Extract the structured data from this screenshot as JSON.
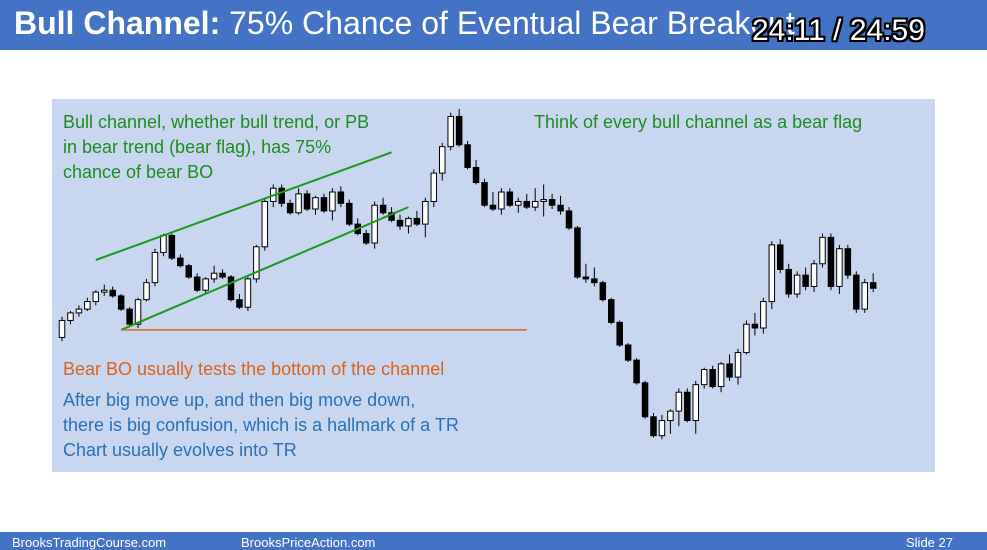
{
  "slide": {
    "title_bold": "Bull Channel:",
    "title_rest": " 75% Chance of Eventual Bear Breakout",
    "timer": "24:11 / 24:59"
  },
  "notes": {
    "bull_channel": [
      "Bull channel, whether bull trend, or PB",
      "in bear trend (bear flag), has 75%",
      "chance of bear BO"
    ],
    "bear_flag": "Think of every bull channel as a bear flag",
    "bear_bo": "Bear BO usually tests the bottom of the channel",
    "confusion": [
      "After big move up, and then big move down,",
      "there is big confusion, which is a hallmark of a TR",
      "Chart usually evolves into TR"
    ]
  },
  "footer": {
    "site1": "BrooksTradingCourse.com",
    "site2": "BrooksPriceAction.com",
    "slide_label": "Slide  27"
  },
  "colors": {
    "title_bar": "#4472c4",
    "chart_bg": "#c9d6f0",
    "bull_candle": "#ffffff",
    "bear_candle": "#000000",
    "channel_line": "#1a9a1a",
    "test_line": "#d9631e"
  },
  "chart_data": {
    "type": "candlestick",
    "ohlc": [
      [
        31,
        29,
        42,
        40
      ],
      [
        40,
        38,
        45,
        44
      ],
      [
        44,
        42,
        48,
        46
      ],
      [
        46,
        45,
        52,
        50
      ],
      [
        50,
        48,
        56,
        55
      ],
      [
        55,
        53,
        59,
        56
      ],
      [
        56,
        52,
        58,
        53
      ],
      [
        53,
        45,
        54,
        46
      ],
      [
        46,
        37,
        47,
        38
      ],
      [
        38,
        36,
        52,
        51
      ],
      [
        51,
        50,
        62,
        60
      ],
      [
        60,
        58,
        78,
        76
      ],
      [
        76,
        74,
        86,
        85
      ],
      [
        85,
        72,
        86,
        73
      ],
      [
        73,
        68,
        75,
        69
      ],
      [
        69,
        62,
        70,
        63
      ],
      [
        63,
        55,
        65,
        56
      ],
      [
        56,
        54,
        63,
        62
      ],
      [
        62,
        60,
        69,
        65
      ],
      [
        65,
        62,
        67,
        63
      ],
      [
        63,
        50,
        64,
        51
      ],
      [
        51,
        46,
        54,
        47
      ],
      [
        47,
        45,
        63,
        62
      ],
      [
        62,
        60,
        80,
        79
      ],
      [
        79,
        77,
        104,
        103
      ],
      [
        103,
        100,
        112,
        110
      ],
      [
        110,
        100,
        112,
        102
      ],
      [
        102,
        96,
        104,
        97
      ],
      [
        97,
        96,
        110,
        107
      ],
      [
        107,
        98,
        109,
        99
      ],
      [
        99,
        96,
        106,
        105
      ],
      [
        105,
        97,
        107,
        98
      ],
      [
        98,
        93,
        110,
        108
      ],
      [
        108,
        100,
        111,
        102
      ],
      [
        102,
        90,
        104,
        91
      ],
      [
        91,
        85,
        94,
        86
      ],
      [
        86,
        80,
        88,
        81
      ],
      [
        81,
        78,
        103,
        101
      ],
      [
        101,
        96,
        105,
        97
      ],
      [
        97,
        92,
        100,
        93
      ],
      [
        93,
        88,
        96,
        90
      ],
      [
        90,
        86,
        95,
        94
      ],
      [
        94,
        90,
        98,
        91
      ],
      [
        91,
        84,
        105,
        103
      ],
      [
        103,
        100,
        120,
        118
      ],
      [
        118,
        114,
        134,
        132
      ],
      [
        132,
        130,
        150,
        148
      ],
      [
        148,
        132,
        152,
        133
      ],
      [
        133,
        120,
        135,
        121
      ],
      [
        121,
        112,
        125,
        113
      ],
      [
        113,
        100,
        115,
        101
      ],
      [
        101,
        98,
        108,
        99
      ],
      [
        99,
        96,
        110,
        108
      ],
      [
        108,
        100,
        110,
        101
      ],
      [
        101,
        97,
        105,
        103
      ],
      [
        103,
        99,
        107,
        100
      ],
      [
        100,
        98,
        110,
        103
      ],
      [
        103,
        95,
        112,
        104
      ],
      [
        104,
        99,
        107,
        101
      ],
      [
        101,
        96,
        106,
        98
      ],
      [
        98,
        88,
        100,
        89
      ],
      [
        89,
        62,
        90,
        63
      ],
      [
        63,
        60,
        70,
        62
      ],
      [
        62,
        58,
        68,
        60
      ],
      [
        60,
        50,
        61,
        51
      ],
      [
        51,
        38,
        52,
        39
      ],
      [
        39,
        26,
        40,
        27
      ],
      [
        27,
        18,
        28,
        19
      ],
      [
        19,
        6,
        20,
        7
      ],
      [
        7,
        -12,
        8,
        -11
      ],
      [
        -11,
        -22,
        -9,
        -21
      ],
      [
        -21,
        -23,
        -10,
        -13
      ],
      [
        -13,
        -20,
        -7,
        -8
      ],
      [
        -8,
        -16,
        4,
        2
      ],
      [
        2,
        -14,
        4,
        -13
      ],
      [
        -13,
        -20,
        8,
        6
      ],
      [
        6,
        4,
        15,
        14
      ],
      [
        14,
        4,
        16,
        5
      ],
      [
        5,
        2,
        18,
        17
      ],
      [
        17,
        8,
        22,
        10
      ],
      [
        10,
        6,
        25,
        23
      ],
      [
        23,
        22,
        40,
        38
      ],
      [
        38,
        32,
        44,
        36
      ],
      [
        36,
        33,
        52,
        50
      ],
      [
        50,
        46,
        82,
        80
      ],
      [
        80,
        65,
        83,
        67
      ],
      [
        67,
        52,
        70,
        54
      ],
      [
        54,
        52,
        66,
        64
      ],
      [
        64,
        56,
        68,
        58
      ],
      [
        58,
        55,
        72,
        70
      ],
      [
        70,
        68,
        86,
        84
      ],
      [
        84,
        56,
        86,
        58
      ],
      [
        58,
        54,
        80,
        78
      ],
      [
        78,
        62,
        80,
        64
      ],
      [
        64,
        44,
        66,
        46
      ],
      [
        46,
        44,
        62,
        60
      ],
      [
        60,
        55,
        65,
        57
      ]
    ],
    "price_range": [
      -36,
      153
    ],
    "channel_top_line": [
      [
        4,
        72
      ],
      [
        39,
        129
      ]
    ],
    "channel_bottom_line": [
      [
        7,
        35
      ],
      [
        41,
        100
      ]
    ],
    "test_line": [
      [
        7,
        35
      ],
      [
        55,
        35
      ]
    ],
    "axis_labels": "none",
    "grid": false
  }
}
